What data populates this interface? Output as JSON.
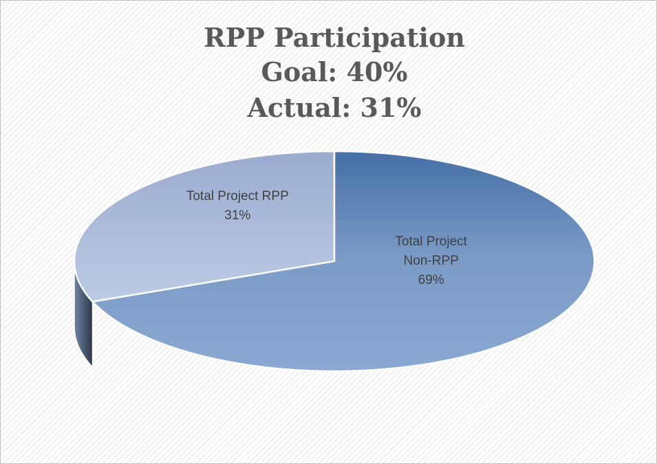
{
  "chart_data": {
    "type": "pie3d",
    "title": [
      "RPP Participation",
      "Goal: 40%",
      "Actual: 31%"
    ],
    "categories": [
      "Total Project RPP",
      "Total Project Non-RPP"
    ],
    "values": [
      31,
      69
    ],
    "value_labels": [
      "31%",
      "69%"
    ],
    "colors": [
      "#b0bfdc",
      "#7d9fcb"
    ]
  }
}
